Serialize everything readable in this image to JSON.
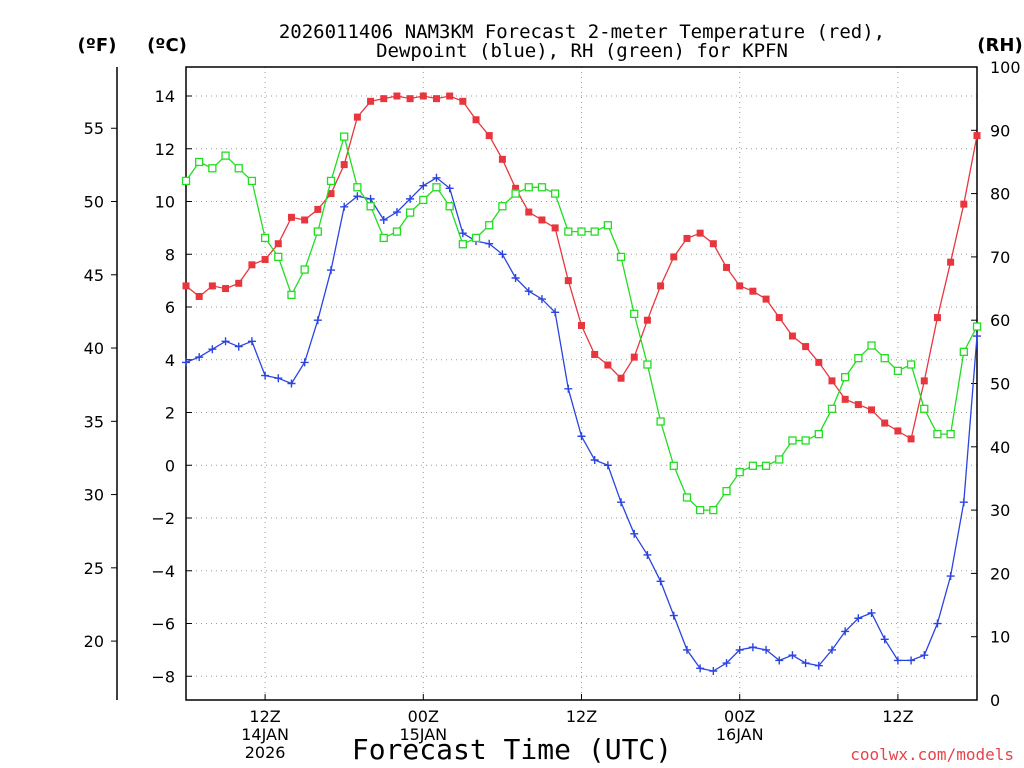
{
  "chart_data": {
    "type": "line",
    "title_line1": "2026011406 NAM3KM Forecast 2-meter Temperature (red),",
    "title_line2": "Dewpoint (blue), RH (green) for KPFN",
    "xlabel": "Forecast Time (UTC)",
    "credit": "coolwx.com/models",
    "units": {
      "f": "(ºF)",
      "c": "(ºC)",
      "rh": "(RH)"
    },
    "x_range_hours": [
      6,
      66
    ],
    "x_ticks": [
      {
        "hour": 12,
        "lines": [
          "12Z",
          "14JAN",
          "2026"
        ]
      },
      {
        "hour": 24,
        "lines": [
          "00Z",
          "15JAN"
        ]
      },
      {
        "hour": 36,
        "lines": [
          "12Z"
        ]
      },
      {
        "hour": 48,
        "lines": [
          "00Z",
          "16JAN"
        ]
      },
      {
        "hour": 60,
        "lines": [
          "12Z"
        ]
      }
    ],
    "celsius_axis": {
      "min": -8.9,
      "max": 15.1,
      "ticks": [
        -8,
        -6,
        -4,
        -2,
        0,
        2,
        4,
        6,
        8,
        10,
        12,
        14
      ]
    },
    "fahrenheit_ticks": [
      20,
      25,
      30,
      35,
      40,
      45,
      50,
      55
    ],
    "rh_axis": {
      "min": 0,
      "max": 100,
      "ticks": [
        0,
        10,
        20,
        30,
        40,
        50,
        60,
        70,
        80,
        90,
        100
      ]
    },
    "series": [
      {
        "name": "Temperature (C)",
        "color": "#e8363e",
        "marker": "filled-square",
        "x": [
          6,
          7,
          8,
          9,
          10,
          11,
          12,
          13,
          14,
          15,
          16,
          17,
          18,
          19,
          20,
          21,
          22,
          23,
          24,
          25,
          26,
          27,
          28,
          29,
          30,
          31,
          32,
          33,
          34,
          35,
          36,
          37,
          38,
          39,
          40,
          41,
          42,
          43,
          44,
          45,
          46,
          47,
          48,
          49,
          50,
          51,
          52,
          53,
          54,
          55,
          56,
          57,
          58,
          59,
          60,
          61,
          62,
          63,
          64,
          65,
          66
        ],
        "values": [
          6.8,
          6.4,
          6.8,
          6.7,
          6.9,
          7.6,
          7.8,
          8.4,
          9.4,
          9.3,
          9.7,
          10.3,
          11.4,
          13.2,
          13.8,
          13.9,
          14.0,
          13.9,
          14.0,
          13.9,
          14.0,
          13.8,
          13.1,
          12.5,
          11.6,
          10.5,
          9.6,
          9.3,
          9.0,
          7.0,
          5.3,
          4.2,
          3.8,
          3.3,
          4.1,
          5.5,
          6.8,
          7.9,
          8.6,
          8.8,
          8.4,
          7.5,
          6.8,
          6.6,
          6.3,
          5.6,
          4.9,
          4.5,
          3.9,
          3.2,
          2.5,
          2.3,
          2.1,
          1.6,
          1.3,
          1.0,
          3.2,
          5.6,
          7.7,
          9.9,
          12.5
        ]
      },
      {
        "name": "Dewpoint (C)",
        "color": "#2a44e0",
        "marker": "plus",
        "x": [
          6,
          7,
          8,
          9,
          10,
          11,
          12,
          13,
          14,
          15,
          16,
          17,
          18,
          19,
          20,
          21,
          22,
          23,
          24,
          25,
          26,
          27,
          28,
          29,
          30,
          31,
          32,
          33,
          34,
          35,
          36,
          37,
          38,
          39,
          40,
          41,
          42,
          43,
          44,
          45,
          46,
          47,
          48,
          49,
          50,
          51,
          52,
          53,
          54,
          55,
          56,
          57,
          58,
          59,
          60,
          61,
          62,
          63,
          64,
          65,
          66
        ],
        "values": [
          3.9,
          4.1,
          4.4,
          4.7,
          4.5,
          4.7,
          3.4,
          3.3,
          3.1,
          3.9,
          5.5,
          7.4,
          9.8,
          10.2,
          10.1,
          9.3,
          9.6,
          10.1,
          10.6,
          10.9,
          10.5,
          8.8,
          8.5,
          8.4,
          8.0,
          7.1,
          6.6,
          6.3,
          5.8,
          2.9,
          1.1,
          0.2,
          0.0,
          -1.4,
          -2.6,
          -3.4,
          -4.4,
          -5.7,
          -7.0,
          -7.7,
          -7.8,
          -7.5,
          -7.0,
          -6.9,
          -7.0,
          -7.4,
          -7.2,
          -7.5,
          -7.6,
          -7.0,
          -6.3,
          -5.8,
          -5.6,
          -6.6,
          -7.4,
          -7.4,
          -7.2,
          -6.0,
          -4.2,
          -1.4,
          4.9
        ]
      },
      {
        "name": "RH (%)",
        "color": "#22dd22",
        "marker": "open-square",
        "x": [
          6,
          7,
          8,
          9,
          10,
          11,
          12,
          13,
          14,
          15,
          16,
          17,
          18,
          19,
          20,
          21,
          22,
          23,
          24,
          25,
          26,
          27,
          28,
          29,
          30,
          31,
          32,
          33,
          34,
          35,
          36,
          37,
          38,
          39,
          40,
          41,
          42,
          43,
          44,
          45,
          46,
          47,
          48,
          49,
          50,
          51,
          52,
          53,
          54,
          55,
          56,
          57,
          58,
          59,
          60,
          61,
          62,
          63,
          64,
          65,
          66
        ],
        "values": [
          82,
          85,
          84,
          86,
          84,
          82,
          73,
          70,
          64,
          68,
          74,
          82,
          89,
          81,
          78,
          73,
          74,
          77,
          79,
          81,
          78,
          72,
          73,
          75,
          78,
          80,
          81,
          81,
          80,
          74,
          74,
          74,
          75,
          70,
          61,
          53,
          44,
          37,
          32,
          30,
          30,
          33,
          36,
          37,
          37,
          38,
          41,
          41,
          42,
          46,
          51,
          54,
          56,
          54,
          52,
          53,
          46,
          42,
          42,
          55,
          59
        ]
      }
    ]
  }
}
